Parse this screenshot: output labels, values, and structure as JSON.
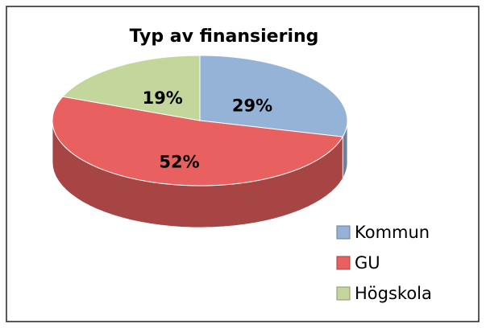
{
  "chart_data": {
    "type": "pie",
    "title": "Typ av finansiering",
    "categories": [
      "Kommun",
      "GU",
      "Högskola"
    ],
    "values": [
      29,
      52,
      19
    ],
    "value_labels": [
      "29%",
      "52%",
      "19%"
    ],
    "colors": [
      "#95b3d7",
      "#e8605f",
      "#c3d69b"
    ],
    "legend": "bottom-right"
  }
}
